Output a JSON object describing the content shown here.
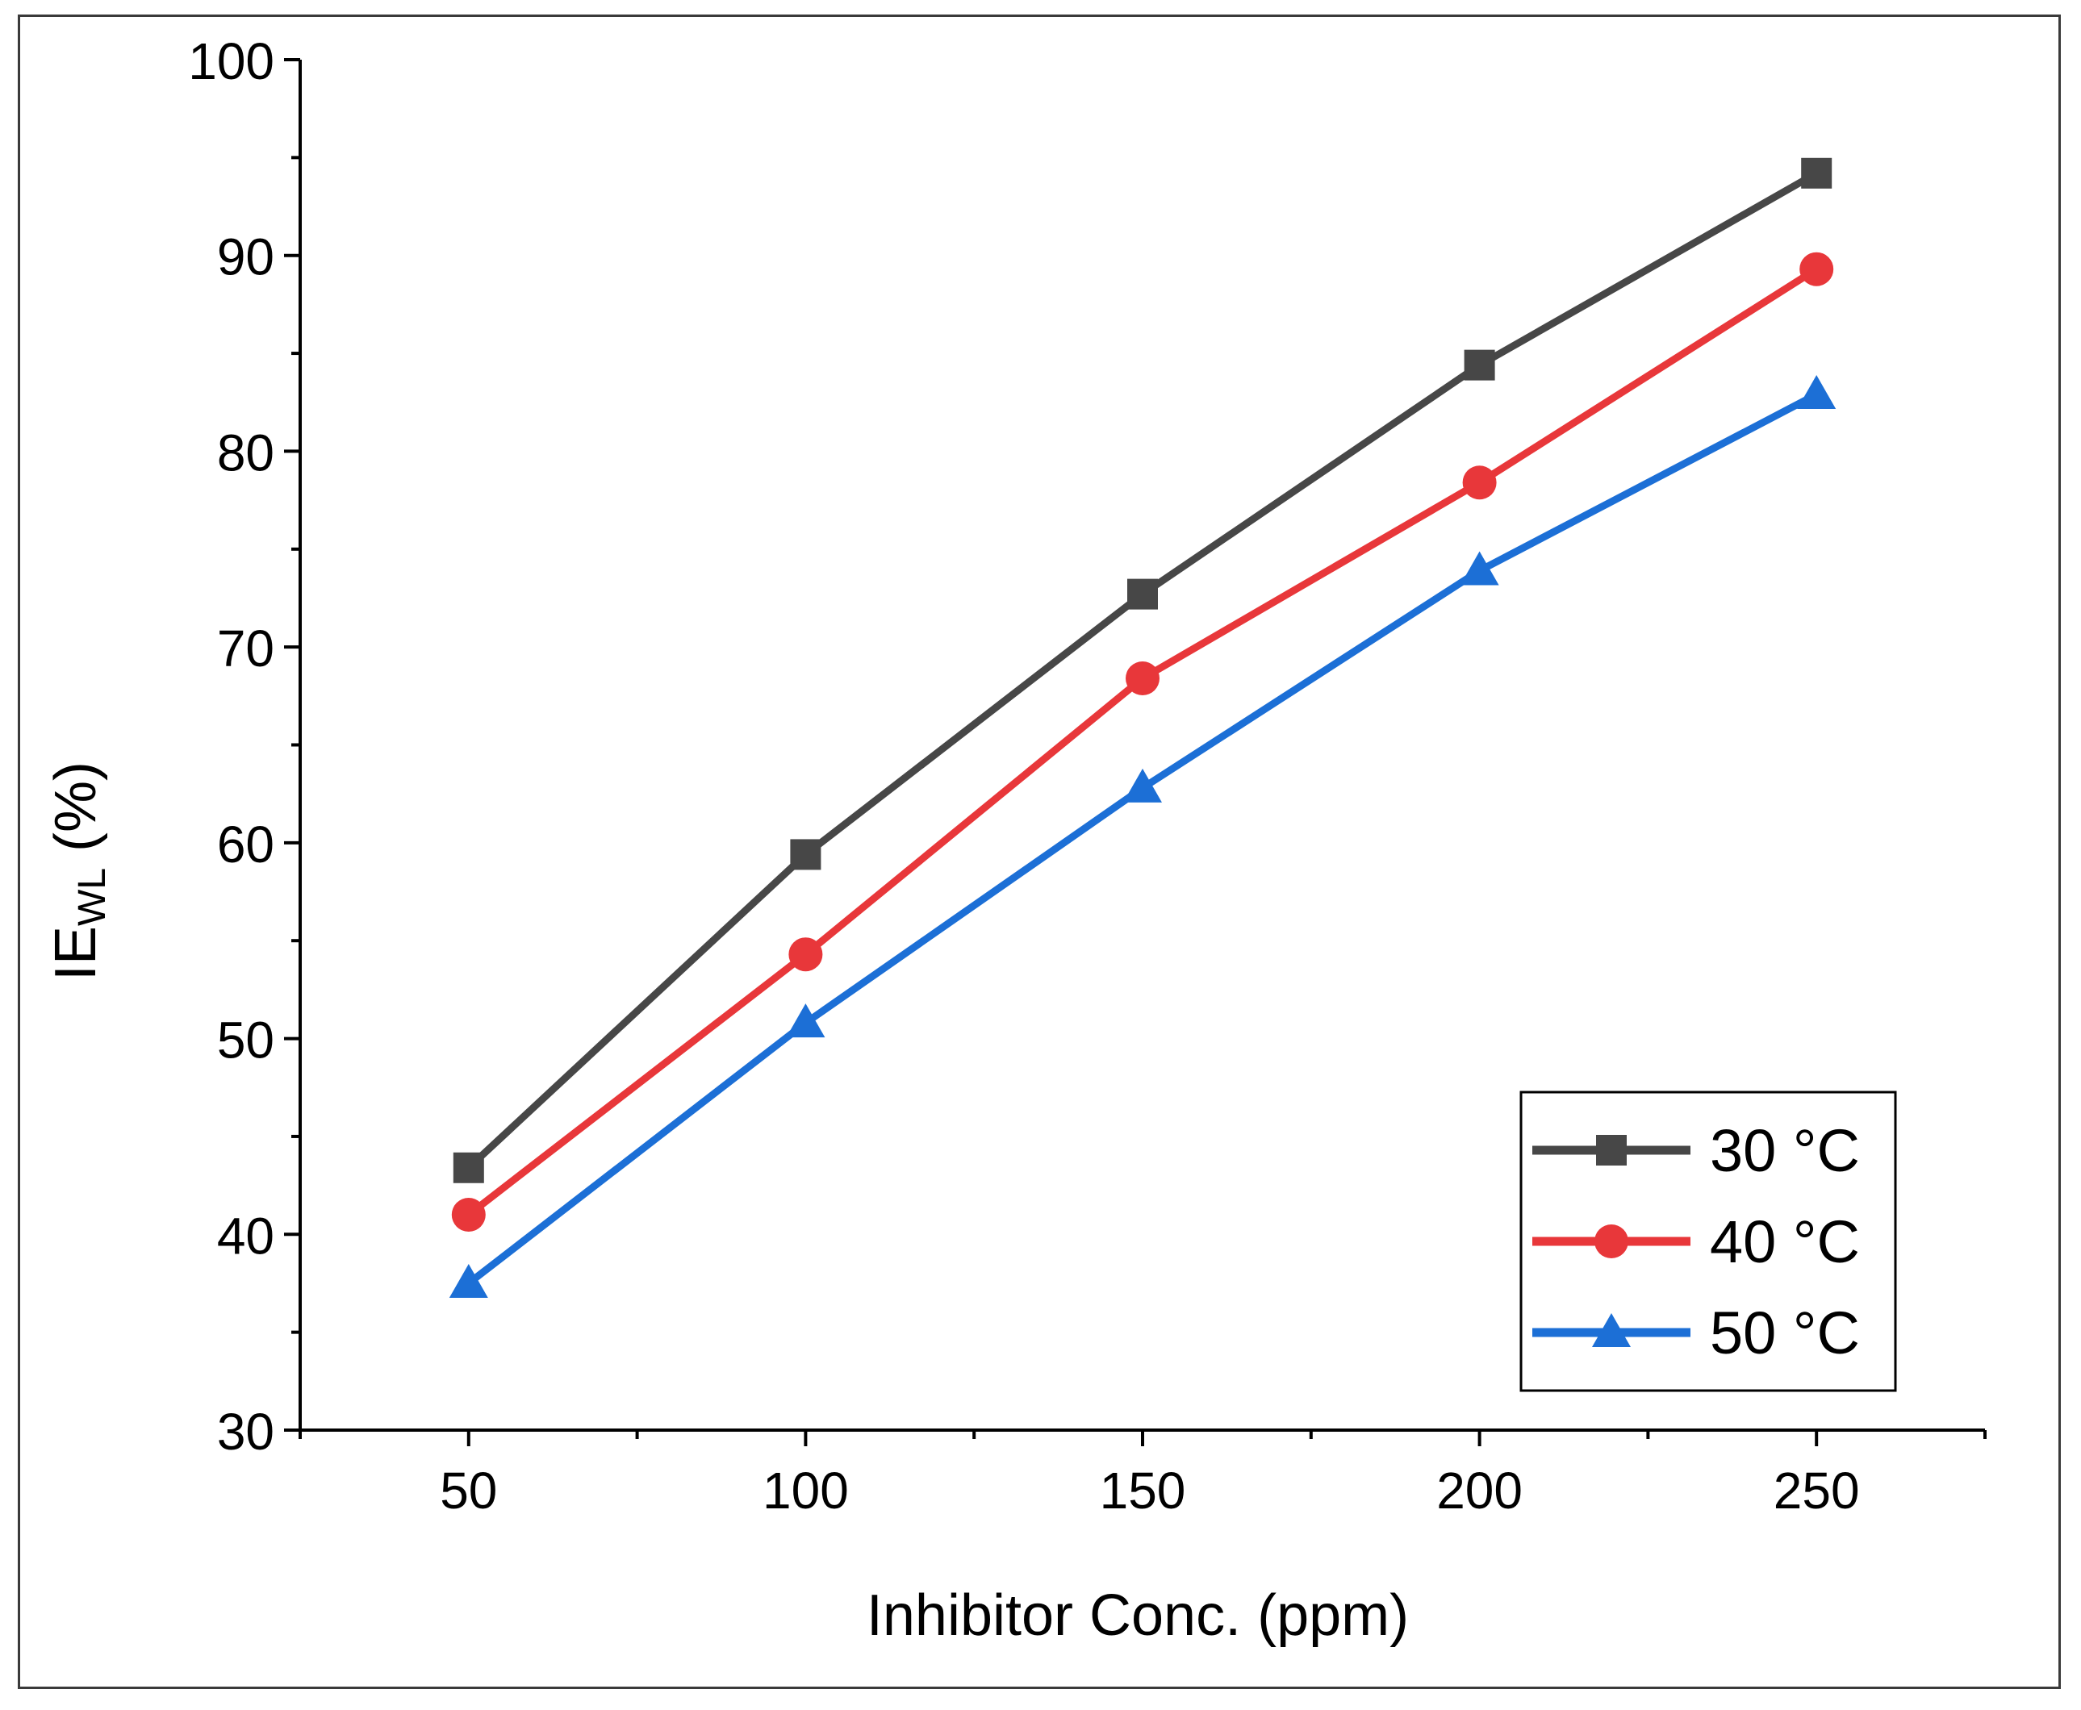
{
  "chart_data": {
    "type": "line",
    "title": "",
    "xlabel": "Inhibitor Conc. (ppm)",
    "ylabel_main": "IE",
    "ylabel_sub": "WL",
    "ylabel_suffix": " (%)",
    "xlim": [
      25,
      275
    ],
    "ylim": [
      30,
      100
    ],
    "x_ticks": [
      50,
      100,
      150,
      200,
      250
    ],
    "x_tick_labels": [
      "50",
      "100",
      "150",
      "200",
      "250"
    ],
    "y_ticks": [
      30,
      40,
      50,
      60,
      70,
      80,
      90,
      100
    ],
    "y_tick_labels": [
      "30",
      "40",
      "50",
      "60",
      "70",
      "80",
      "90",
      "100"
    ],
    "x": [
      50,
      100,
      150,
      200,
      250
    ],
    "series": [
      {
        "name": "30 °C",
        "color": "#474747",
        "marker": "square",
        "values": [
          43.4,
          59.4,
          72.7,
          84.4,
          94.2
        ]
      },
      {
        "name": "40 °C",
        "color": "#e8373a",
        "marker": "circle",
        "values": [
          41.0,
          54.3,
          68.4,
          78.4,
          89.3
        ]
      },
      {
        "name": "50 °C",
        "color": "#1c6fd6",
        "marker": "triangle",
        "values": [
          37.5,
          50.8,
          62.8,
          73.9,
          82.9
        ]
      }
    ],
    "legend_position": "bottom-right",
    "grid": false
  }
}
